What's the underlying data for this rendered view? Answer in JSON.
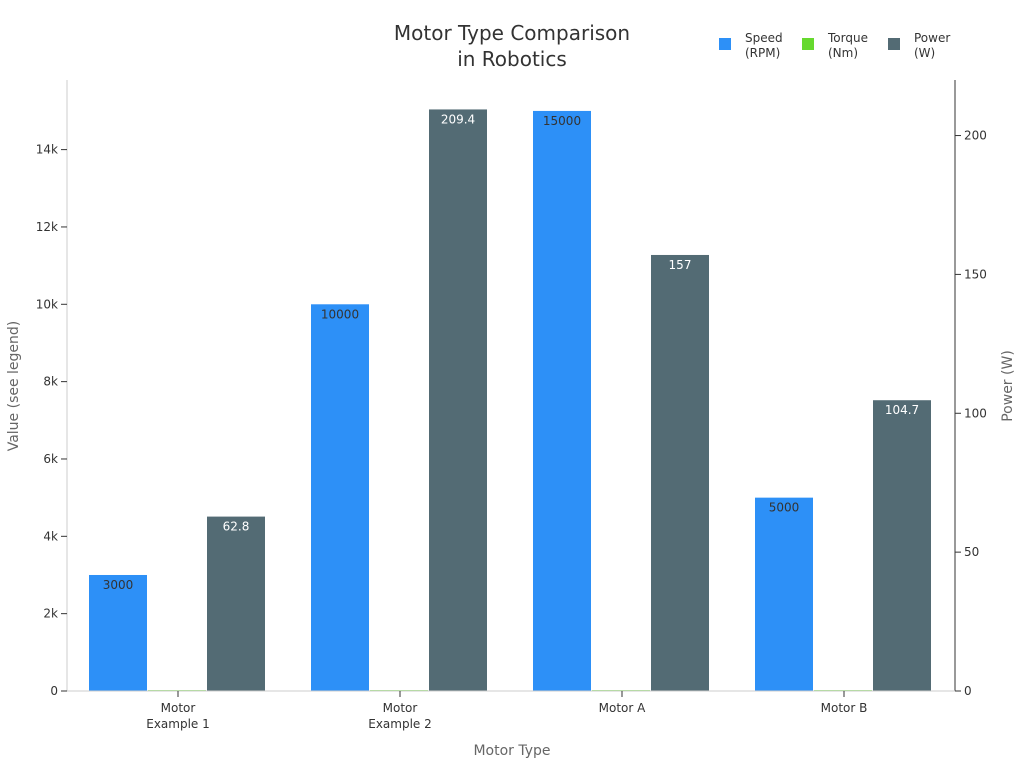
{
  "chart_data": {
    "type": "bar",
    "title": [
      "Motor Type Comparison",
      "in Robotics"
    ],
    "xlabel": "Motor Type",
    "ylabel_left": "Value (see legend)",
    "ylabel_right": "Power (W)",
    "categories": [
      [
        "Motor",
        "Example 1"
      ],
      [
        "Motor",
        "Example 2"
      ],
      [
        "Motor A"
      ],
      [
        "Motor B"
      ]
    ],
    "ylim_left": [
      0,
      15800
    ],
    "ylim_right": [
      0,
      220
    ],
    "yticks_left": [
      0,
      2000,
      4000,
      6000,
      8000,
      10000,
      12000,
      14000
    ],
    "ytick_labels_left": [
      "0",
      "2k",
      "4k",
      "6k",
      "8k",
      "10k",
      "12k",
      "14k"
    ],
    "yticks_right": [
      0,
      50,
      100,
      150,
      200
    ],
    "ytick_labels_right": [
      "0",
      "50",
      "100",
      "150",
      "200"
    ],
    "legend_position": "top-right",
    "grid": false,
    "series": [
      {
        "name": [
          "Speed",
          "(RPM)"
        ],
        "axis": "left",
        "color": "#2d90f7",
        "label_color": "#333333",
        "values": [
          3000,
          10000,
          15000,
          5000
        ],
        "labels": [
          "3000",
          "10000",
          "15000",
          "5000"
        ]
      },
      {
        "name": [
          "Torque",
          "(Nm)"
        ],
        "axis": "left",
        "color": "#66d92e",
        "label_color": "#333333",
        "values": [
          2,
          5,
          10,
          3
        ],
        "labels": [
          "",
          "",
          "",
          ""
        ]
      },
      {
        "name": [
          "Power",
          "(W)"
        ],
        "axis": "right",
        "color": "#536b74",
        "label_color": "#ffffff",
        "values": [
          62.8,
          209.4,
          157,
          104.7
        ],
        "labels": [
          "62.8",
          "209.4",
          "157",
          "104.7"
        ]
      }
    ]
  }
}
